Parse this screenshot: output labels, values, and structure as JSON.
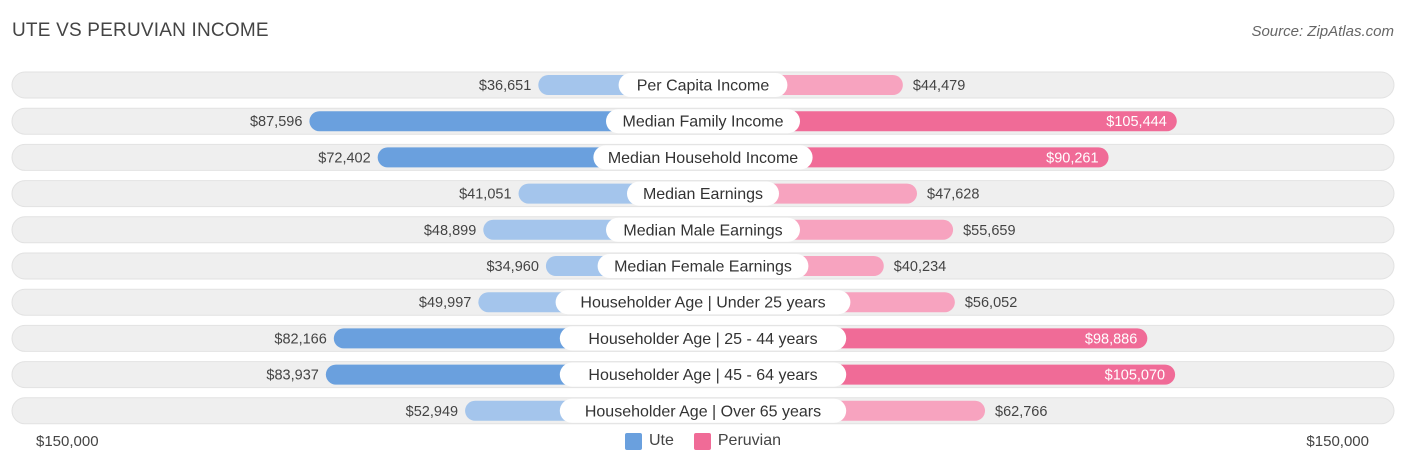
{
  "header": {
    "title": "UTE VS PERUVIAN INCOME",
    "source": "Source: ZipAtlas.com"
  },
  "colors": {
    "left_strong": "#6aa0de",
    "left_light": "#a4c5ec",
    "right_strong": "#f06b97",
    "right_light": "#f7a3bf",
    "row_bg": "#efefef"
  },
  "chart_data": {
    "type": "bar",
    "orientation": "horizontal-diverging",
    "categories": [
      "Per Capita Income",
      "Median Family Income",
      "Median Household Income",
      "Median Earnings",
      "Median Male Earnings",
      "Median Female Earnings",
      "Householder Age | Under 25 years",
      "Householder Age | 25 - 44 years",
      "Householder Age | 45 - 64 years",
      "Householder Age | Over 65 years"
    ],
    "series": [
      {
        "name": "Ute",
        "values": [
          36651,
          87596,
          72402,
          41051,
          48899,
          34960,
          49997,
          82166,
          83937,
          52949
        ],
        "labels": [
          "$36,651",
          "$87,596",
          "$72,402",
          "$41,051",
          "$48,899",
          "$34,960",
          "$49,997",
          "$82,166",
          "$83,937",
          "$52,949"
        ]
      },
      {
        "name": "Peruvian",
        "values": [
          44479,
          105444,
          90261,
          47628,
          55659,
          40234,
          56052,
          98886,
          105070,
          62766
        ],
        "labels": [
          "$44,479",
          "$105,444",
          "$90,261",
          "$47,628",
          "$55,659",
          "$40,234",
          "$56,052",
          "$98,886",
          "$105,070",
          "$62,766"
        ]
      }
    ],
    "axis_max": 150000,
    "axis_left_label": "$150,000",
    "axis_right_label": "$150,000",
    "strong_threshold": 70000
  }
}
